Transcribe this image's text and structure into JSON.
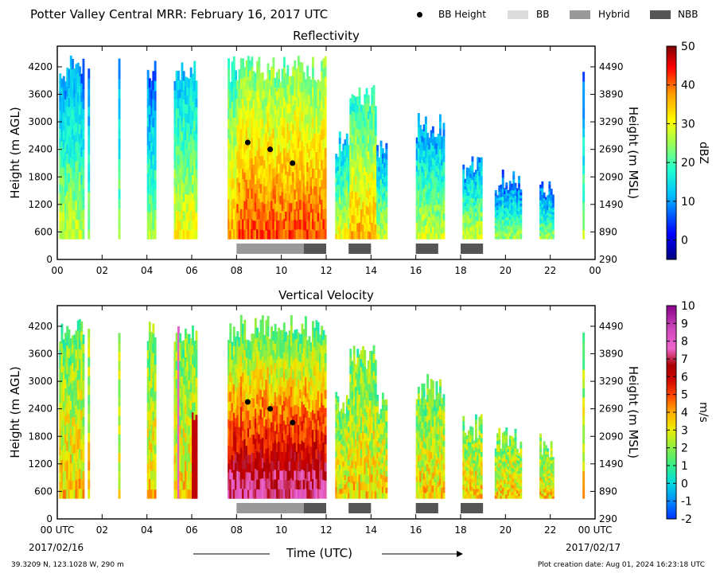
{
  "figure": {
    "title": "Potter Valley Central MRR:  February 16, 2017 UTC",
    "location": "39.3209 N, 123.1028 W, 290 m",
    "creation_date": "Plot creation date: Aug 01, 2024 16:23:18 UTC",
    "start_date": "2017/02/16",
    "end_date": "2017/02/17",
    "xlabel": "Time (UTC)"
  },
  "legend": [
    {
      "label": "BB Height",
      "color": "#000000",
      "shape": "dot"
    },
    {
      "label": "BB",
      "color": "#dcdcdc",
      "shape": "rect"
    },
    {
      "label": "Hybrid",
      "color": "#999999",
      "shape": "rect"
    },
    {
      "label": "NBB",
      "color": "#555555",
      "shape": "rect"
    }
  ],
  "chart_data": [
    {
      "type": "heatmap",
      "title": "Reflectivity",
      "xlabel": "",
      "ylabel": "Height (m AGL)",
      "ylabel_right": "Height (m MSL)",
      "xlim": [
        0,
        24
      ],
      "ylim": [
        0,
        4650
      ],
      "x_ticks": [
        "00",
        "02",
        "04",
        "06",
        "08",
        "10",
        "12",
        "14",
        "16",
        "18",
        "20",
        "22",
        "00"
      ],
      "y_ticks": [
        0,
        600,
        1200,
        1800,
        2400,
        3000,
        3600,
        4200
      ],
      "y_ticks_right": [
        290,
        890,
        1490,
        2090,
        2690,
        3290,
        3890,
        4490
      ],
      "colorbar": {
        "label": "dBZ",
        "min": -5,
        "max": 50,
        "ticks": [
          0,
          10,
          20,
          30,
          40,
          50
        ]
      },
      "bb_height": [
        {
          "x": 8.5,
          "y": 2550
        },
        {
          "x": 9.5,
          "y": 2400
        },
        {
          "x": 10.5,
          "y": 2100
        }
      ],
      "bb_classes": [
        {
          "start": 8.0,
          "end": 11.0,
          "class": "Hybrid"
        },
        {
          "start": 11.0,
          "end": 12.0,
          "class": "NBB"
        },
        {
          "start": 13.0,
          "end": 14.0,
          "class": "NBB"
        },
        {
          "start": 16.0,
          "end": 17.0,
          "class": "NBB"
        },
        {
          "start": 18.0,
          "end": 19.0,
          "class": "NBB"
        }
      ]
    },
    {
      "type": "heatmap",
      "title": "Vertical Velocity",
      "xlabel": "Time (UTC)",
      "ylabel": "Height (m AGL)",
      "ylabel_right": "Height (m MSL)",
      "xlim": [
        0,
        24
      ],
      "ylim": [
        0,
        4650
      ],
      "x_ticks": [
        "00 UTC",
        "02",
        "04",
        "06",
        "08",
        "10",
        "12",
        "14",
        "16",
        "18",
        "20",
        "22",
        "00 UTC"
      ],
      "y_ticks": [
        0,
        600,
        1200,
        1800,
        2400,
        3000,
        3600,
        4200
      ],
      "y_ticks_right": [
        290,
        890,
        1490,
        2090,
        2690,
        3290,
        3890,
        4490
      ],
      "colorbar": {
        "label": "m/s",
        "min": -2,
        "max": 10,
        "ticks": [
          -2,
          -1,
          0,
          1,
          2,
          3,
          4,
          5,
          6,
          7,
          8,
          9,
          10
        ]
      },
      "bb_height": [
        {
          "x": 8.5,
          "y": 2550
        },
        {
          "x": 9.5,
          "y": 2400
        },
        {
          "x": 10.5,
          "y": 2100
        }
      ],
      "bb_classes": [
        {
          "start": 8.0,
          "end": 11.0,
          "class": "Hybrid"
        },
        {
          "start": 11.0,
          "end": 12.0,
          "class": "NBB"
        },
        {
          "start": 13.0,
          "end": 14.0,
          "class": "NBB"
        },
        {
          "start": 16.0,
          "end": 17.0,
          "class": "NBB"
        },
        {
          "start": 18.0,
          "end": 19.0,
          "class": "NBB"
        }
      ]
    }
  ]
}
